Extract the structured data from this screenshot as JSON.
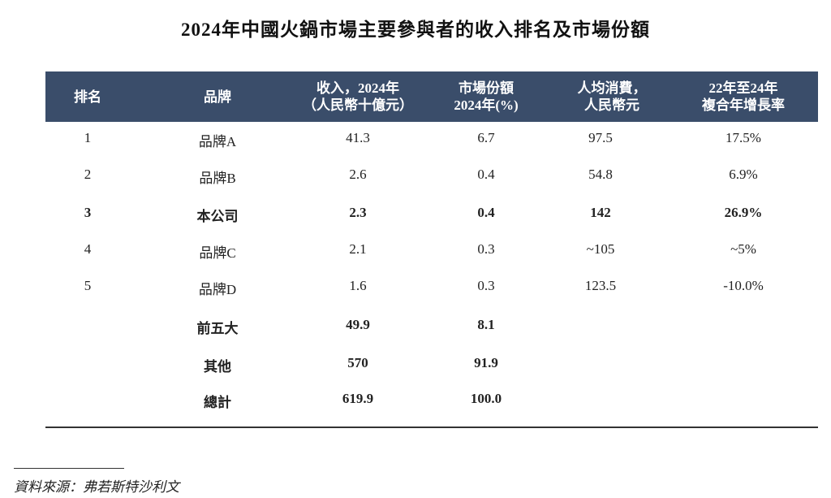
{
  "title": "2024年中國火鍋市場主要參與者的收入排名及市場份額",
  "headers": [
    {
      "line1": "排名",
      "line2": ""
    },
    {
      "line1": "品牌",
      "line2": ""
    },
    {
      "line1": "收入，2024年",
      "line2": "（人民幣十億元）"
    },
    {
      "line1": "市場份額",
      "line2": "2024年(%)"
    },
    {
      "line1": "人均消費，",
      "line2": "人民幣元"
    },
    {
      "line1": "22年至24年",
      "line2": "複合年增長率"
    }
  ],
  "rows": [
    {
      "rank": "1",
      "brand": "品牌A",
      "revenue": "41.3",
      "share": "6.7",
      "per_capita": "97.5",
      "cagr": "17.5%",
      "bold": false
    },
    {
      "rank": "2",
      "brand": "品牌B",
      "revenue": "2.6",
      "share": "0.4",
      "per_capita": "54.8",
      "cagr": "6.9%",
      "bold": false
    },
    {
      "rank": "3",
      "brand": "本公司",
      "revenue": "2.3",
      "share": "0.4",
      "per_capita": "142",
      "cagr": "26.9%",
      "bold": true
    },
    {
      "rank": "4",
      "brand": "品牌C",
      "revenue": "2.1",
      "share": "0.3",
      "per_capita": "~105",
      "cagr": "~5%",
      "bold": false
    },
    {
      "rank": "5",
      "brand": "品牌D",
      "revenue": "1.6",
      "share": "0.3",
      "per_capita": "123.5",
      "cagr": "-10.0%",
      "bold": false
    },
    {
      "rank": "",
      "brand": "前五大",
      "revenue": "49.9",
      "share": "8.1",
      "per_capita": "",
      "cagr": "",
      "bold": true
    },
    {
      "rank": "",
      "brand": "其他",
      "revenue": "570",
      "share": "91.9",
      "per_capita": "",
      "cagr": "",
      "bold": true
    },
    {
      "rank": "",
      "brand": "總計",
      "revenue": "619.9",
      "share": "100.0",
      "per_capita": "",
      "cagr": "",
      "bold": true
    }
  ],
  "source": "資料來源：弗若斯特沙利文"
}
